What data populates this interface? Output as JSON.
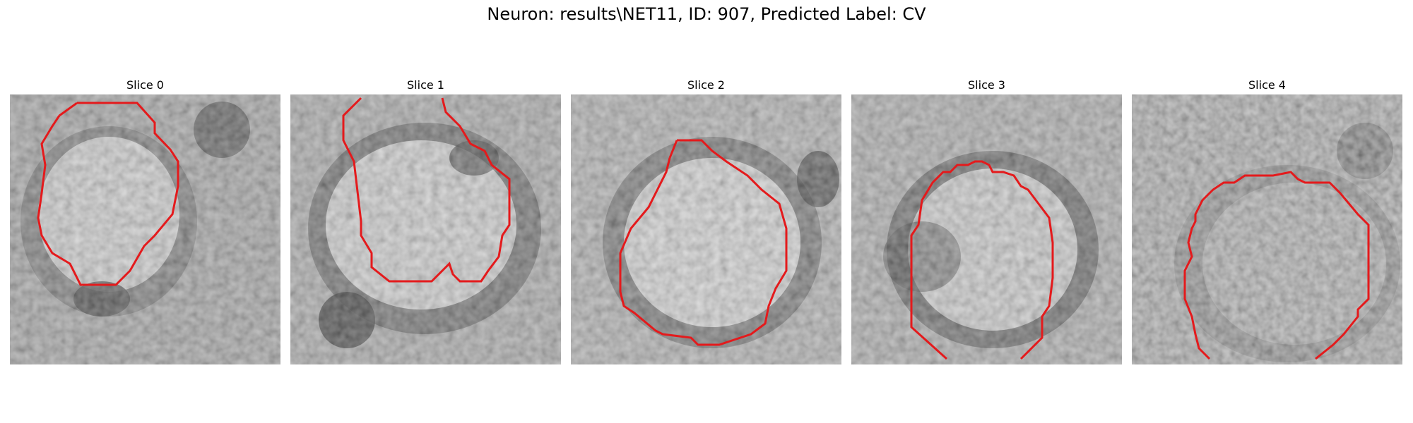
{
  "figure": {
    "title": "Neuron: results\\NET11, ID: 907, Predicted Label: CV",
    "contour_color": "#e41a1c",
    "colormap": "grayscale",
    "panels": [
      {
        "title": "Slice 0"
      },
      {
        "title": "Slice 1"
      },
      {
        "title": "Slice 2"
      },
      {
        "title": "Slice 3"
      },
      {
        "title": "Slice 4"
      }
    ]
  }
}
